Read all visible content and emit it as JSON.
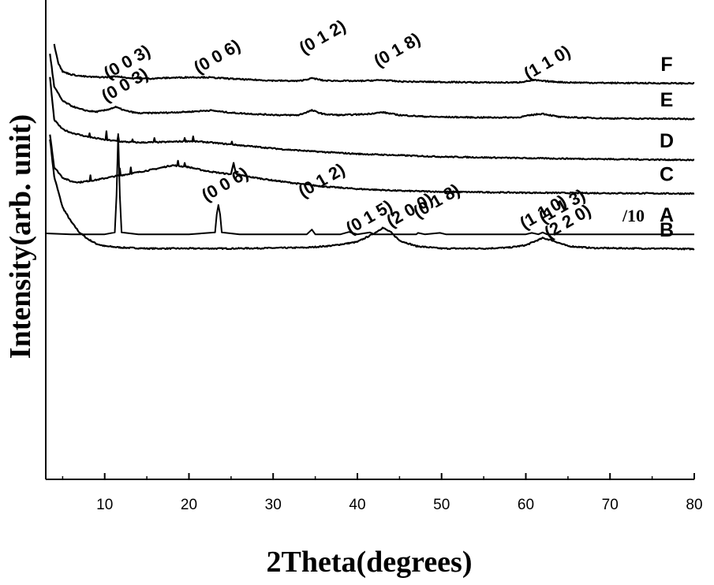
{
  "chart_data": {
    "type": "line",
    "title": "",
    "xlabel": "2Theta(degrees)",
    "ylabel": "Intensity(arb. unit)",
    "xlim": [
      3,
      80
    ],
    "xticks": [
      10,
      20,
      30,
      40,
      50,
      60,
      70,
      80
    ],
    "y_ticks_shown": false,
    "grid": false,
    "legend": "none",
    "series": [
      {
        "name": "A",
        "scale_note": "/10",
        "points": [
          [
            3,
            520
          ],
          [
            6,
            518
          ],
          [
            10,
            518
          ],
          [
            11.2,
            522
          ],
          [
            11.4,
            600
          ],
          [
            11.6,
            730
          ],
          [
            11.8,
            600
          ],
          [
            12.0,
            522
          ],
          [
            14,
            518
          ],
          [
            20,
            518
          ],
          [
            23.1,
            522
          ],
          [
            23.3,
            560
          ],
          [
            23.5,
            580
          ],
          [
            23.7,
            560
          ],
          [
            23.9,
            522
          ],
          [
            26,
            518
          ],
          [
            34,
            518
          ],
          [
            34.6,
            528
          ],
          [
            35,
            518
          ],
          [
            38,
            518
          ],
          [
            39,
            523
          ],
          [
            40,
            518
          ],
          [
            41.5,
            522
          ],
          [
            42,
            518
          ],
          [
            47,
            518
          ],
          [
            47.2,
            521
          ],
          [
            48,
            518
          ],
          [
            49.8,
            521
          ],
          [
            50.5,
            518
          ],
          [
            60,
            518
          ],
          [
            60.7,
            521
          ],
          [
            61.5,
            518
          ],
          [
            62,
            522
          ],
          [
            62.5,
            518
          ],
          [
            80,
            518
          ]
        ],
        "peaks": [
          {
            "label": "(0 0 3)",
            "x": 11.6
          },
          {
            "label": "(0 0 6)",
            "x": 23.5
          },
          {
            "label": "(0 1 2)",
            "x": 34.6
          },
          {
            "label": "(0 1 5)",
            "x": 39.5
          },
          {
            "label": "(0 1 8)",
            "x": 46.0
          },
          {
            "label": "(1 1 0)",
            "x": 60.7
          },
          {
            "label": "(1 1 3)",
            "x": 62.2
          }
        ]
      },
      {
        "name": "B",
        "points": [
          [
            3.5,
            720
          ],
          [
            4,
            640
          ],
          [
            5,
            575
          ],
          [
            6,
            545
          ],
          [
            7,
            522
          ],
          [
            8,
            508
          ],
          [
            9,
            498
          ],
          [
            10,
            493
          ],
          [
            12,
            490
          ],
          [
            15,
            488
          ],
          [
            20,
            488
          ],
          [
            25,
            488
          ],
          [
            30,
            489
          ],
          [
            34,
            490
          ],
          [
            37,
            494
          ],
          [
            40,
            502
          ],
          [
            42,
            520
          ],
          [
            43,
            532
          ],
          [
            44,
            522
          ],
          [
            45,
            505
          ],
          [
            47,
            493
          ],
          [
            50,
            488
          ],
          [
            55,
            488
          ],
          [
            58,
            490
          ],
          [
            60,
            495
          ],
          [
            62,
            510
          ],
          [
            63,
            506
          ],
          [
            65,
            493
          ],
          [
            68,
            489
          ],
          [
            75,
            488
          ],
          [
            80,
            487
          ]
        ],
        "peaks": [
          {
            "label": "(2 0 0)",
            "x": 43.0
          },
          {
            "label": "(2 2 0)",
            "x": 62.5
          }
        ]
      },
      {
        "name": "C",
        "points": [
          [
            3.5,
            730
          ],
          [
            4,
            660
          ],
          [
            5,
            638
          ],
          [
            6,
            630
          ],
          [
            7,
            628
          ],
          [
            9,
            633
          ],
          [
            11,
            640
          ],
          [
            13,
            646
          ],
          [
            16,
            656
          ],
          [
            18,
            664
          ],
          [
            20,
            660
          ],
          [
            22,
            652
          ],
          [
            24,
            647
          ],
          [
            25.0,
            645
          ],
          [
            25.3,
            670
          ],
          [
            25.6,
            645
          ],
          [
            27,
            640
          ],
          [
            30,
            632
          ],
          [
            33,
            625
          ],
          [
            36,
            619
          ],
          [
            40,
            614
          ],
          [
            45,
            610
          ],
          [
            50,
            608
          ],
          [
            60,
            606
          ],
          [
            70,
            605
          ],
          [
            80,
            604
          ]
        ],
        "spikes": [
          [
            8.3,
            12
          ],
          [
            11.8,
            14
          ],
          [
            13.1,
            14
          ],
          [
            18.7,
            10
          ],
          [
            19.5,
            9
          ]
        ]
      },
      {
        "name": "D",
        "points": [
          [
            3.5,
            850
          ],
          [
            4,
            760
          ],
          [
            5,
            740
          ],
          [
            6,
            733
          ],
          [
            8,
            724
          ],
          [
            10,
            718
          ],
          [
            12,
            714
          ],
          [
            14,
            712
          ],
          [
            17,
            713
          ],
          [
            20,
            715
          ],
          [
            22,
            713
          ],
          [
            25,
            708
          ],
          [
            28,
            703
          ],
          [
            31,
            698
          ],
          [
            35,
            693
          ],
          [
            40,
            688
          ],
          [
            45,
            685
          ],
          [
            50,
            682
          ],
          [
            60,
            679
          ],
          [
            70,
            677
          ],
          [
            80,
            675
          ]
        ],
        "spikes": [
          [
            8.2,
            9
          ],
          [
            10.2,
            17
          ],
          [
            11.6,
            12
          ],
          [
            13.3,
            6
          ],
          [
            15.9,
            8
          ],
          [
            19.5,
            8
          ],
          [
            20.5,
            10
          ],
          [
            25.1,
            7
          ]
        ]
      },
      {
        "name": "E",
        "points": [
          [
            3.5,
            900
          ],
          [
            4,
            830
          ],
          [
            5,
            800
          ],
          [
            6,
            790
          ],
          [
            7,
            783
          ],
          [
            8,
            779
          ],
          [
            9,
            777
          ],
          [
            10,
            780
          ],
          [
            11.3,
            787
          ],
          [
            12.5,
            779
          ],
          [
            14,
            774
          ],
          [
            17,
            775
          ],
          [
            20,
            777
          ],
          [
            22.5,
            780
          ],
          [
            25,
            775
          ],
          [
            28,
            772
          ],
          [
            31,
            770
          ],
          [
            33,
            770
          ],
          [
            34.6,
            780
          ],
          [
            36,
            772
          ],
          [
            38,
            770
          ],
          [
            41,
            772
          ],
          [
            43,
            776
          ],
          [
            45,
            770
          ],
          [
            48,
            767
          ],
          [
            50,
            766
          ],
          [
            55,
            765
          ],
          [
            59,
            765
          ],
          [
            61,
            771
          ],
          [
            62,
            773
          ],
          [
            64,
            766
          ],
          [
            70,
            763
          ],
          [
            80,
            762
          ]
        ]
      },
      {
        "name": "F",
        "points": [
          [
            4,
            920
          ],
          [
            4.5,
            880
          ],
          [
            5,
            862
          ],
          [
            6,
            856
          ],
          [
            7,
            853
          ],
          [
            8,
            851
          ],
          [
            10,
            850
          ],
          [
            11.5,
            852
          ],
          [
            13,
            848
          ],
          [
            15,
            847
          ],
          [
            18,
            849
          ],
          [
            20,
            850
          ],
          [
            22,
            850
          ],
          [
            24,
            848
          ],
          [
            27,
            845
          ],
          [
            30,
            843
          ],
          [
            33,
            842
          ],
          [
            34.7,
            848
          ],
          [
            36,
            843
          ],
          [
            40,
            842
          ],
          [
            43,
            844
          ],
          [
            45,
            841
          ],
          [
            50,
            840
          ],
          [
            55,
            839
          ],
          [
            59,
            839
          ],
          [
            61,
            844
          ],
          [
            62,
            842
          ],
          [
            65,
            839
          ],
          [
            70,
            838
          ],
          [
            80,
            837
          ]
        ],
        "peaks": [
          {
            "label": "(0 0 3)",
            "x": 11.5
          },
          {
            "label": "(0 0 6)",
            "x": 22.0
          },
          {
            "label": "(0 1 2)",
            "x": 34.7
          },
          {
            "label": "(0 1 8)",
            "x": 43.0
          },
          {
            "label": "(1 1 0)",
            "x": 61.0
          }
        ]
      }
    ]
  }
}
